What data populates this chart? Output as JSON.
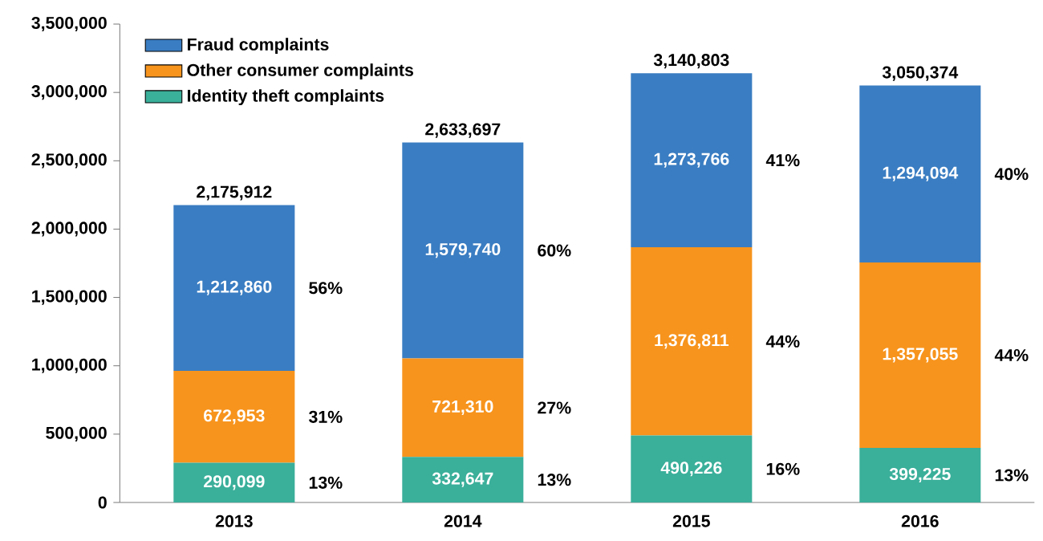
{
  "chart_data": {
    "type": "bar",
    "stacked": true,
    "legend": "top left",
    "categories": [
      "2013",
      "2014",
      "2015",
      "2016"
    ],
    "series": [
      {
        "name": "Identity theft complaints",
        "color": "#3aaf9a",
        "values": [
          290099,
          332647,
          490226,
          399225
        ],
        "value_labels": [
          "290,099",
          "332,647",
          "490,226",
          "399,225"
        ]
      },
      {
        "name": "Other consumer complaints",
        "color": "#f7941d",
        "values": [
          672953,
          721310,
          1376811,
          1357055
        ],
        "value_labels": [
          "672,953",
          "721,310",
          "1,376,811",
          "1,357,055"
        ]
      },
      {
        "name": "Fraud complaints",
        "color": "#3a7dc2",
        "values": [
          1212860,
          1579740,
          1273766,
          1294094
        ],
        "value_labels": [
          "1,212,860",
          "1,579,740",
          "1,273,766",
          "1,294,094"
        ]
      }
    ],
    "totals": [
      "2,175,912",
      "2,633,697",
      "3,140,803",
      "3,050,374"
    ],
    "ylim": [
      0,
      3500000
    ],
    "yticks": [
      {
        "value": 0,
        "label": "0"
      },
      {
        "value": 500000,
        "label": "500,000"
      },
      {
        "value": 1000000,
        "label": "1,000,000"
      },
      {
        "value": 1500000,
        "label": "1,500,000"
      },
      {
        "value": 2000000,
        "label": "2,000,000"
      },
      {
        "value": 2500000,
        "label": "2,500,000"
      },
      {
        "value": 3000000,
        "label": "3,000,000"
      },
      {
        "value": 3500000,
        "label": "3,500,000"
      }
    ],
    "annotations": [
      "13%",
      "31%",
      "56%",
      "13%",
      "27%",
      "60%",
      "16%",
      "44%",
      "41%",
      "13%",
      "44%",
      "40%"
    ]
  }
}
